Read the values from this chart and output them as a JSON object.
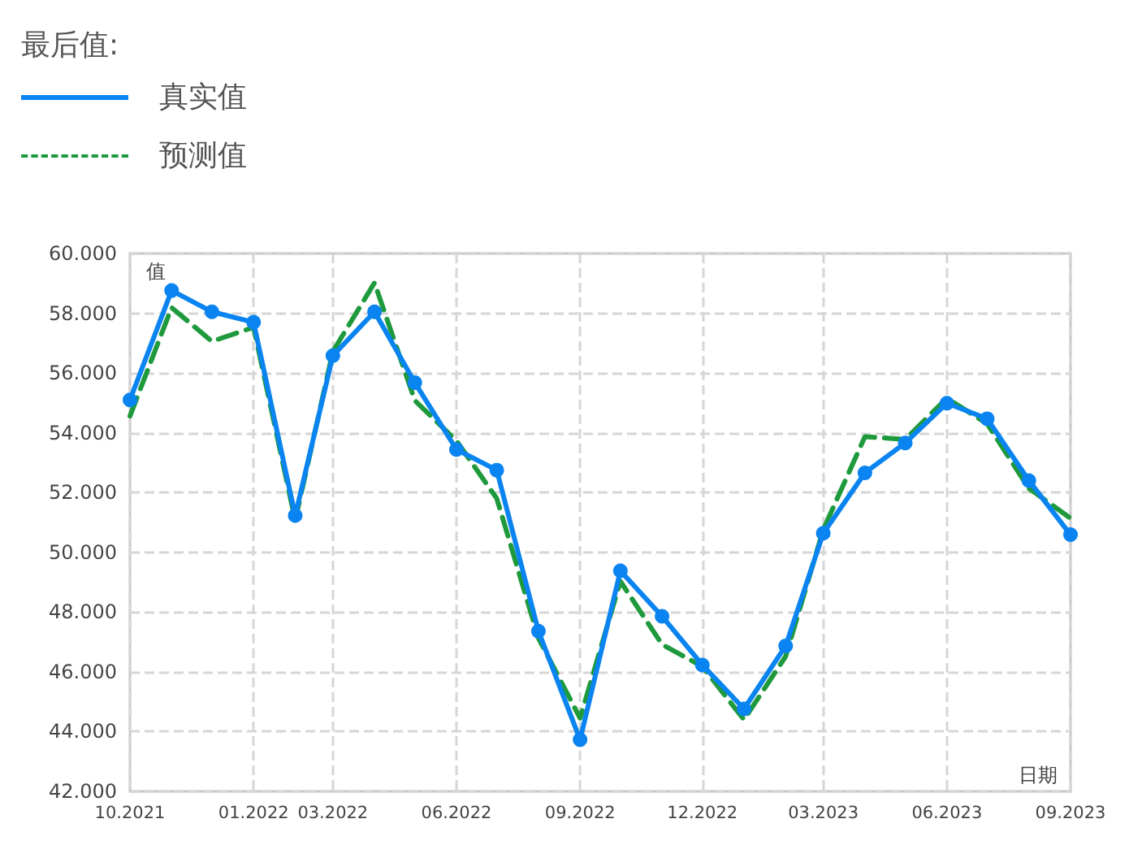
{
  "chart_data": {
    "type": "line",
    "title": "最后值:",
    "xlabel": "日期",
    "ylabel": "值",
    "x": [
      "2021-10",
      "2021-11",
      "2021-12",
      "2022-01",
      "2022-02",
      "2022-03",
      "2022-04",
      "2022-05",
      "2022-06",
      "2022-07",
      "2022-08",
      "2022-09",
      "2022-10",
      "2022-11",
      "2022-12",
      "2023-01",
      "2023-02",
      "2023-03",
      "2023-04",
      "2023-05",
      "2023-06",
      "2023-07",
      "2023-08",
      "2023-09"
    ],
    "series": [
      {
        "name": "真实值",
        "color": "#0a84f0",
        "marker": "circle",
        "line_style": "solid",
        "values": [
          55.1,
          58.76,
          58.05,
          57.7,
          51.23,
          56.58,
          58.05,
          55.68,
          53.44,
          52.75,
          47.36,
          43.73,
          49.38,
          47.86,
          46.23,
          44.76,
          46.87,
          50.64,
          52.66,
          53.66,
          54.99,
          54.47,
          52.4,
          50.59
        ]
      },
      {
        "name": "预测值",
        "color": "#1e9a3c",
        "marker": "none",
        "line_style": "dashed",
        "values": [
          54.56,
          58.19,
          57.06,
          57.53,
          51.07,
          56.72,
          59.02,
          55.08,
          53.73,
          51.8,
          47.13,
          44.45,
          49.03,
          46.92,
          46.18,
          44.4,
          46.52,
          50.76,
          53.87,
          53.78,
          55.16,
          54.3,
          52.14,
          51.14
        ]
      }
    ],
    "xlim": [
      "2021-10",
      "2023-09"
    ],
    "xticks": [
      {
        "value": "2021-10",
        "label": "10.2021"
      },
      {
        "value": "2022-01",
        "label": "01.2022"
      },
      {
        "value": "2022-03",
        "label": "03.2022"
      },
      {
        "value": "2022-06",
        "label": "06.2022"
      },
      {
        "value": "2022-09",
        "label": "09.2022"
      },
      {
        "value": "2022-12",
        "label": "12.2022"
      },
      {
        "value": "2023-03",
        "label": "03.2023"
      },
      {
        "value": "2023-06",
        "label": "06.2023"
      },
      {
        "value": "2023-09",
        "label": "09.2023"
      }
    ],
    "ylim": [
      42,
      60
    ],
    "yticks": [
      {
        "value": 42,
        "label": "42.000"
      },
      {
        "value": 44,
        "label": "44.000"
      },
      {
        "value": 46,
        "label": "46.000"
      },
      {
        "value": 48,
        "label": "48.000"
      },
      {
        "value": 50,
        "label": "50.000"
      },
      {
        "value": 52,
        "label": "52.000"
      },
      {
        "value": 54,
        "label": "54.000"
      },
      {
        "value": 56,
        "label": "56.000"
      },
      {
        "value": 58,
        "label": "58.000"
      },
      {
        "value": 60,
        "label": "60.000"
      }
    ],
    "grid": true,
    "legend": "top left"
  }
}
